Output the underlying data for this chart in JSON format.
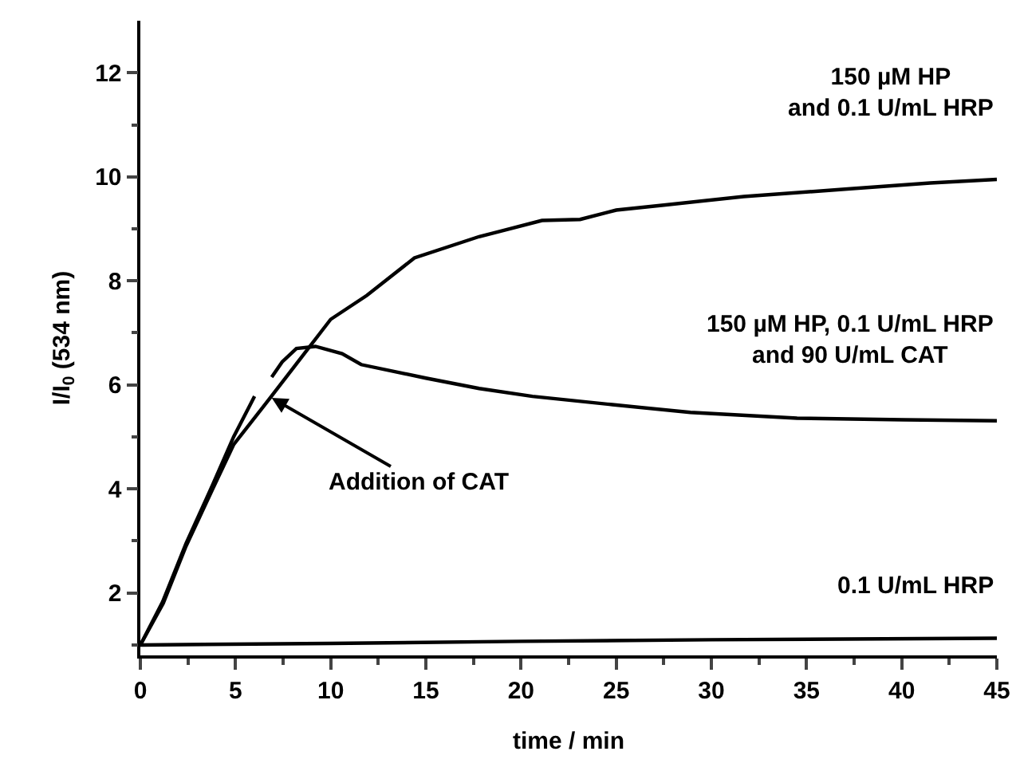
{
  "chart_data": {
    "type": "line",
    "xlabel": "time / min",
    "ylabel": "I/I$_{0}$ (534 nm)",
    "xlim": [
      0,
      45
    ],
    "ylim": [
      0.8,
      13
    ],
    "xticks": [
      0,
      {
        "value": 2.5,
        "label": null
      },
      5,
      {
        "value": 7.5,
        "label": null
      },
      10,
      {
        "value": 12.5,
        "label": null
      },
      15,
      {
        "value": 17.5,
        "label": null
      },
      20,
      {
        "value": 22.5,
        "label": null
      },
      25,
      {
        "value": 27.5,
        "label": null
      },
      30,
      {
        "value": 32.5,
        "label": null
      },
      35,
      {
        "value": 37.5,
        "label": null
      },
      40,
      {
        "value": 42.5,
        "label": null
      },
      45
    ],
    "yticks": [
      {
        "value": 1,
        "label": null
      },
      2,
      {
        "value": 3,
        "label": null
      },
      4,
      {
        "value": 5,
        "label": null
      },
      6,
      {
        "value": 7,
        "label": null
      },
      8,
      {
        "value": 9,
        "label": null
      },
      10,
      {
        "value": 11,
        "label": null
      },
      12
    ],
    "grid": false,
    "legend": false,
    "marker": "none",
    "line_style": "solid",
    "series": [
      {
        "name": "150 µM HP\nand 0.1 U/mL HRP",
        "color": "#000000",
        "x": [
          0,
          1.2,
          2.4,
          3.8,
          4.9,
          6.8,
          8.4,
          10,
          11.9,
          14.4,
          17.8,
          18.9,
          21.1,
          23.1,
          25,
          27.6,
          31.7,
          37.3,
          41.5,
          45
        ],
        "values": [
          1,
          1.8,
          2.9,
          4.0,
          4.85,
          5.74,
          6.5,
          7.26,
          7.72,
          8.44,
          8.85,
          8.95,
          9.16,
          9.18,
          9.36,
          9.46,
          9.62,
          9.77,
          9.88,
          9.95
        ]
      },
      {
        "name": "150 µM HP, 0.1 U/mL HRP\nand 90 U/mL CAT",
        "color": "#000000",
        "x": [
          0,
          1.17,
          2.4,
          3.8,
          4.9,
          6.0,
          6.4,
          6.9,
          7.45,
          8.2,
          9.2,
          10.6,
          11.6,
          15,
          17.8,
          20.6,
          24.8,
          28.9,
          34.5,
          40.1,
          45
        ],
        "values": [
          1,
          1.83,
          2.95,
          4.08,
          5.0,
          5.78,
          null,
          6.15,
          6.44,
          6.7,
          6.74,
          6.6,
          6.39,
          6.13,
          5.93,
          5.78,
          5.62,
          5.47,
          5.36,
          5.33,
          5.31
        ]
      },
      {
        "name": "0.1 U/mL HRP",
        "color": "#000000",
        "x": [
          0,
          10,
          20,
          30,
          45
        ],
        "values": [
          1.0,
          1.03,
          1.07,
          1.1,
          1.13
        ]
      }
    ],
    "annotations": [
      {
        "text": "Addition of CAT",
        "x": 6.9,
        "y": 5.75
      }
    ]
  }
}
